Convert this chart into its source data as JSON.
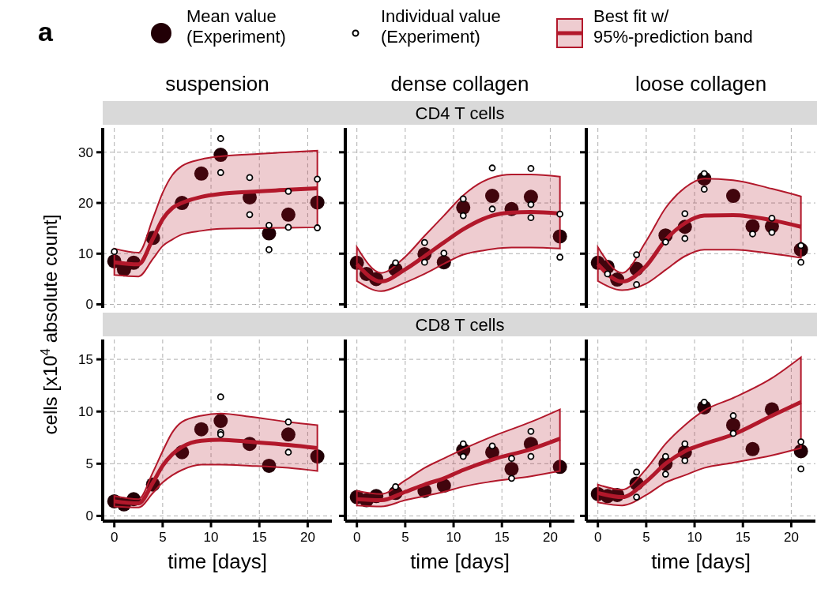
{
  "chart_data": [
    {
      "type": "scatter",
      "title": "suspension",
      "ylabel": "cells [x10$^{4}$ absolute count]",
      "annotations": [
        "a"
      ],
      "legend": "top",
      "grid": true,
      "tick_labels": "y",
      "x": [
        0,
        1,
        2,
        4,
        7,
        9,
        11,
        14,
        16,
        18,
        21
      ],
      "xlim": [
        -1.2,
        22.5
      ],
      "xticks": [
        0,
        5,
        10,
        15,
        20
      ],
      "ylim": [
        -0.7,
        34.8
      ],
      "yticks": [
        0,
        10,
        20,
        30
      ],
      "series": [
        {
          "name": "Mean value\n(Experiment)",
          "marker": "circle",
          "color": "#220006",
          "values": [
            8.5,
            6.9,
            8.2,
            13.1,
            20.0,
            25.8,
            29.5,
            21.1,
            14.0,
            17.7,
            20.1
          ]
        },
        {
          "name": "Individual value\n(Experiment)",
          "marker": "circle",
          "color": "#000000",
          "x": [
            0,
            11,
            11,
            14,
            14,
            16,
            16,
            18,
            18,
            21,
            21
          ],
          "values": [
            10.4,
            32.7,
            26.0,
            25.0,
            17.7,
            15.6,
            10.8,
            22.3,
            15.2,
            24.7,
            15.1
          ]
        },
        {
          "name": "Best fit w/\n95%-prediction band",
          "type": "line",
          "marker": "none",
          "color": "#b2182b",
          "x": [
            0,
            2.5,
            4,
            5,
            6,
            7,
            9,
            11,
            14,
            18,
            21
          ],
          "values": [
            8.3,
            7.9,
            13.0,
            16.8,
            19.0,
            20.0,
            21.2,
            21.8,
            22.2,
            22.6,
            22.9
          ],
          "lower": [
            5.8,
            5.5,
            9.0,
            11.5,
            12.8,
            13.8,
            14.5,
            14.9,
            15.0,
            15.1,
            15.2
          ],
          "upper": [
            11.0,
            10.2,
            17.0,
            22.0,
            25.5,
            27.3,
            28.6,
            29.2,
            29.6,
            30.0,
            30.3
          ]
        }
      ]
    },
    {
      "type": "scatter",
      "title": "dense collagen",
      "subtitle": "CD4 T cells",
      "grid": true,
      "tick_labels": false,
      "x": [
        0,
        1,
        2,
        4,
        7,
        9,
        11,
        14,
        16,
        18,
        21
      ],
      "xlim": [
        -1.2,
        22.5
      ],
      "xticks": [
        0,
        5,
        10,
        15,
        20
      ],
      "ylim": [
        -0.7,
        34.8
      ],
      "yticks": [
        0,
        10,
        20,
        30
      ],
      "series": [
        {
          "marker": "circle",
          "color": "#220006",
          "values": [
            8.2,
            6.0,
            5.0,
            6.9,
            9.9,
            8.3,
            19.1,
            21.4,
            18.8,
            21.2,
            13.4
          ]
        },
        {
          "marker": "circle",
          "color": "#000000",
          "x": [
            4,
            7,
            7,
            9,
            11,
            11,
            14,
            14,
            18,
            18,
            18,
            21,
            21
          ],
          "values": [
            8.2,
            12.2,
            8.3,
            10.1,
            20.8,
            17.5,
            26.9,
            18.8,
            26.8,
            19.7,
            17.1,
            17.8,
            9.3
          ]
        },
        {
          "type": "line",
          "marker": "none",
          "color": "#b2182b",
          "x": [
            0,
            2.5,
            5,
            7,
            9,
            11,
            13,
            14,
            16,
            18,
            21
          ],
          "values": [
            7.9,
            4.5,
            6.9,
            9.5,
            12.2,
            14.8,
            16.8,
            17.5,
            18.1,
            18.2,
            17.9
          ],
          "lower": [
            4.6,
            2.6,
            4.3,
            6.0,
            8.0,
            9.8,
            10.6,
            10.9,
            11.2,
            11.2,
            11.0
          ],
          "upper": [
            11.3,
            6.2,
            9.4,
            13.5,
            17.5,
            21.5,
            24.2,
            25.0,
            25.6,
            25.6,
            25.2
          ]
        }
      ]
    },
    {
      "type": "scatter",
      "title": "loose collagen",
      "grid": true,
      "tick_labels": false,
      "x": [
        0,
        1,
        2,
        4,
        7,
        9,
        11,
        14,
        16,
        18,
        21
      ],
      "xlim": [
        -1.2,
        22.5
      ],
      "xticks": [
        0,
        5,
        10,
        15,
        20
      ],
      "ylim": [
        -0.7,
        34.8
      ],
      "yticks": [
        0,
        10,
        20,
        30
      ],
      "series": [
        {
          "marker": "circle",
          "color": "#220006",
          "values": [
            8.2,
            7.4,
            4.9,
            7.0,
            13.6,
            15.3,
            24.8,
            21.4,
            15.4,
            15.4,
            10.8
          ]
        },
        {
          "marker": "circle",
          "color": "#000000",
          "x": [
            1,
            4,
            4,
            7,
            9,
            9,
            11,
            11,
            16,
            18,
            18,
            21,
            21
          ],
          "values": [
            6.0,
            9.8,
            3.9,
            12.3,
            17.9,
            13.0,
            25.8,
            22.7,
            13.9,
            17.0,
            14.2,
            11.6,
            8.3
          ]
        },
        {
          "type": "line",
          "marker": "none",
          "color": "#b2182b",
          "x": [
            0,
            2.5,
            5,
            7,
            9,
            11,
            14,
            18,
            21
          ],
          "values": [
            7.9,
            4.5,
            7.6,
            12.7,
            16.0,
            17.5,
            17.6,
            16.6,
            15.3
          ],
          "lower": [
            4.6,
            2.8,
            4.1,
            6.8,
            9.5,
            10.8,
            10.8,
            10.0,
            9.2
          ],
          "upper": [
            11.3,
            6.2,
            12.5,
            19.0,
            23.0,
            24.8,
            24.5,
            22.8,
            21.3
          ]
        }
      ]
    },
    {
      "type": "scatter",
      "xlabel": "time [days]",
      "grid": true,
      "x": [
        0,
        1,
        2,
        4,
        7,
        9,
        11,
        14,
        16,
        18,
        21
      ],
      "xlim": [
        -1.2,
        22.5
      ],
      "xticks": [
        0,
        5,
        10,
        15,
        20
      ],
      "ylim": [
        -0.5,
        16.9
      ],
      "yticks": [
        0,
        5,
        10,
        15
      ],
      "series": [
        {
          "marker": "circle",
          "color": "#220006",
          "values": [
            1.4,
            1.1,
            1.6,
            3.0,
            6.1,
            8.3,
            9.1,
            6.9,
            4.8,
            7.8,
            5.7
          ]
        },
        {
          "marker": "circle",
          "color": "#000000",
          "x": [
            11,
            11,
            11,
            18,
            18
          ],
          "values": [
            11.4,
            8.0,
            7.8,
            9.0,
            6.1
          ]
        },
        {
          "type": "line",
          "marker": "none",
          "color": "#b2182b",
          "x": [
            0,
            2.5,
            4,
            5,
            6,
            7,
            9,
            11,
            14,
            18,
            21
          ],
          "values": [
            1.4,
            1.2,
            3.2,
            4.8,
            5.9,
            6.6,
            7.2,
            7.3,
            7.1,
            6.8,
            6.5
          ],
          "lower": [
            0.9,
            0.8,
            2.2,
            3.2,
            3.9,
            4.4,
            4.9,
            4.9,
            4.8,
            4.6,
            4.3
          ],
          "upper": [
            1.9,
            1.6,
            4.2,
            6.2,
            8.0,
            9.0,
            9.6,
            9.8,
            9.5,
            9.0,
            8.7
          ]
        }
      ]
    },
    {
      "type": "scatter",
      "subtitle": "CD8 T cells",
      "xlabel": "time [days]",
      "grid": true,
      "tick_labels": "x",
      "x": [
        0,
        1,
        2,
        4,
        7,
        9,
        11,
        14,
        16,
        18,
        21
      ],
      "xlim": [
        -1.2,
        22.5
      ],
      "xticks": [
        0,
        5,
        10,
        15,
        20
      ],
      "ylim": [
        -0.5,
        16.9
      ],
      "yticks": [
        0,
        5,
        10,
        15
      ],
      "series": [
        {
          "marker": "circle",
          "color": "#220006",
          "values": [
            1.8,
            1.5,
            1.9,
            2.2,
            2.4,
            2.9,
            6.3,
            6.1,
            4.5,
            6.9,
            4.7
          ]
        },
        {
          "marker": "circle",
          "color": "#000000",
          "x": [
            4,
            11,
            11,
            14,
            16,
            16,
            18,
            18
          ],
          "values": [
            2.8,
            6.9,
            5.7,
            6.7,
            5.5,
            3.6,
            8.1,
            5.7
          ]
        },
        {
          "type": "line",
          "marker": "none",
          "color": "#b2182b",
          "x": [
            0,
            2.5,
            5,
            7,
            9,
            11,
            14,
            18,
            21
          ],
          "values": [
            1.6,
            1.5,
            2.3,
            3.0,
            3.6,
            4.4,
            5.4,
            6.4,
            7.4
          ],
          "lower": [
            1.0,
            0.9,
            1.5,
            1.9,
            2.3,
            2.8,
            3.3,
            3.8,
            4.3
          ],
          "upper": [
            2.4,
            2.1,
            3.4,
            4.6,
            5.5,
            6.4,
            7.6,
            9.0,
            10.2
          ]
        }
      ]
    },
    {
      "type": "scatter",
      "xlabel": "time [days]",
      "grid": true,
      "tick_labels": "x",
      "x": [
        0,
        1,
        2,
        4,
        7,
        9,
        11,
        14,
        16,
        18,
        21
      ],
      "xlim": [
        -1.2,
        22.5
      ],
      "xticks": [
        0,
        5,
        10,
        15,
        20
      ],
      "ylim": [
        -0.5,
        16.9
      ],
      "yticks": [
        0,
        5,
        10,
        15
      ],
      "series": [
        {
          "marker": "circle",
          "color": "#220006",
          "values": [
            2.1,
            1.9,
            2.0,
            3.1,
            5.0,
            6.1,
            10.4,
            8.7,
            6.4,
            10.2,
            6.2
          ]
        },
        {
          "marker": "circle",
          "color": "#000000",
          "x": [
            4,
            4,
            7,
            7,
            9,
            9,
            11,
            14,
            14,
            21,
            21
          ],
          "values": [
            4.2,
            1.8,
            5.7,
            4.0,
            6.9,
            5.3,
            10.9,
            9.6,
            7.9,
            7.1,
            4.5
          ]
        },
        {
          "type": "line",
          "marker": "none",
          "color": "#b2182b",
          "x": [
            0,
            2.5,
            5,
            7,
            9,
            11,
            14,
            18,
            21
          ],
          "values": [
            2.2,
            1.8,
            3.3,
            5.0,
            6.2,
            6.9,
            7.8,
            9.6,
            10.9
          ],
          "lower": [
            1.3,
            1.0,
            2.0,
            3.2,
            3.9,
            4.6,
            5.1,
            5.8,
            6.5
          ],
          "upper": [
            3.0,
            2.5,
            4.5,
            6.9,
            8.7,
            10.1,
            11.3,
            13.2,
            15.2
          ]
        }
      ]
    }
  ]
}
